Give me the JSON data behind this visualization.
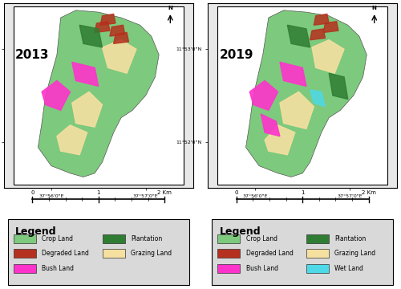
{
  "fig_width": 5.0,
  "fig_height": 3.6,
  "dpi": 100,
  "background_color": "#ffffff",
  "panel_bg": "#ffffff",
  "map_bg": "#ffffff",
  "years": [
    "2013",
    "2019"
  ],
  "x_ticks_labels": [
    "37°56'0\"E",
    "37°57'0\"E"
  ],
  "y_ticks_labels": [
    "11°53'0\"N",
    "11°52'0\"N"
  ],
  "legend_entries_left": [
    {
      "label": "Crop Land",
      "color": "#7dc97d"
    },
    {
      "label": "Degraded Land",
      "color": "#b5301e"
    },
    {
      "label": "Bush Land",
      "color": "#ff33cc"
    },
    {
      "label": "Plantation",
      "color": "#2e7d32"
    },
    {
      "label": "Grazing Land",
      "color": "#f5e0a0"
    }
  ],
  "legend_entries_right": [
    {
      "label": "Crop Land",
      "color": "#7dc97d"
    },
    {
      "label": "Degraded Land",
      "color": "#b5301e"
    },
    {
      "label": "Bush Land",
      "color": "#ff33cc"
    },
    {
      "label": "Plantation",
      "color": "#2e7d32"
    },
    {
      "label": "Grazing Land",
      "color": "#f5e0a0"
    },
    {
      "label": "Wet Land",
      "color": "#4dd9e8"
    }
  ],
  "map_border_color": "#000000",
  "scalebar_label": "2 Km",
  "legend_bg": "#d9d9d9",
  "legend_border": "#000000",
  "axis_label_fontsize": 5,
  "year_fontsize": 11,
  "legend_title_fontsize": 9,
  "legend_item_fontsize": 5.5,
  "tick_fontsize": 4.5
}
